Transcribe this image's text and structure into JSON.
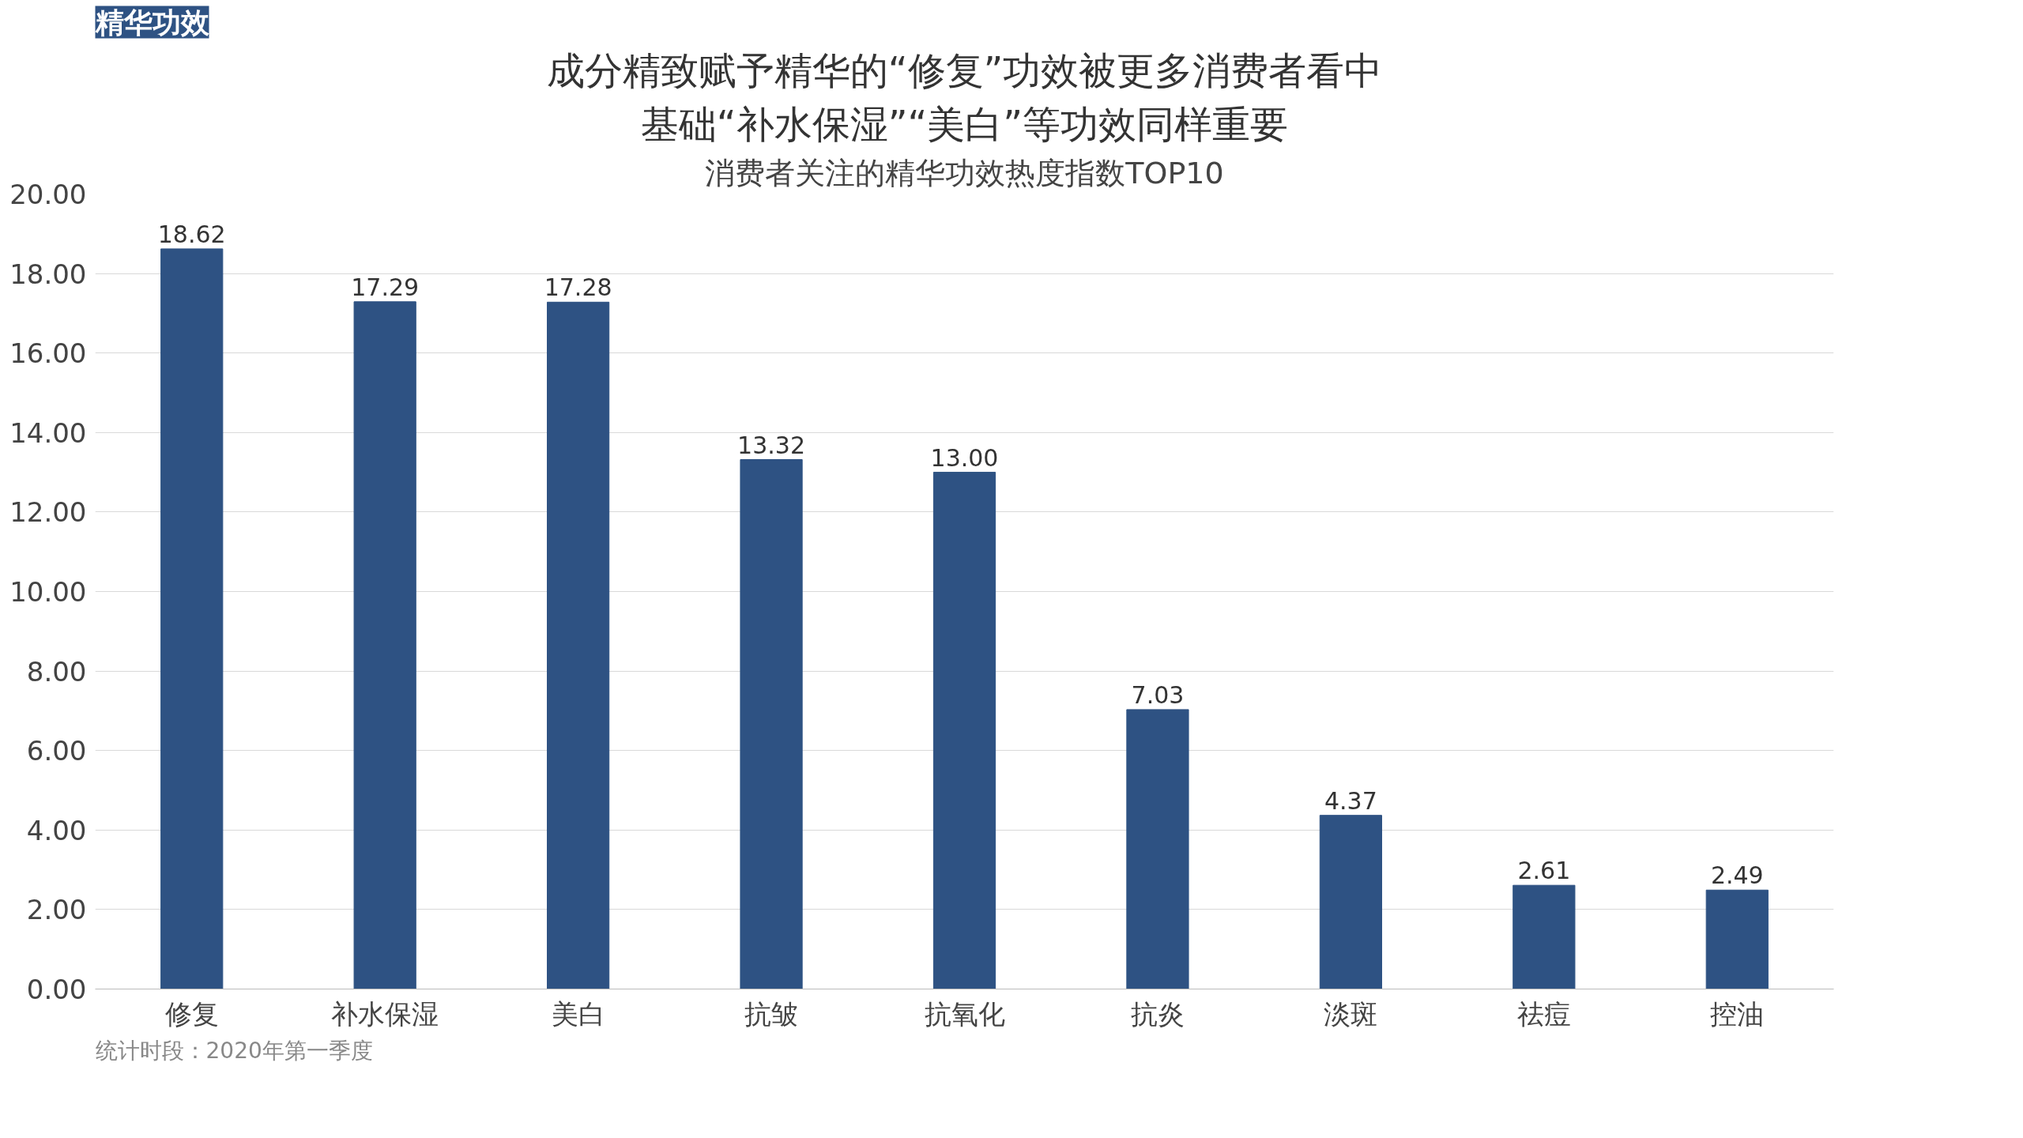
{
  "chart_data": {
    "type": "bar",
    "title": "成分精致赋予精华的“修复”功效被更多消费者看中",
    "subtitle": "基础“补水保湿”“美白”等功效同样重要",
    "categories": [
      "修复",
      "补水保湿",
      "美白",
      "抗皱",
      "抗氧化",
      "抗炎",
      "淡斑",
      "祛痘",
      "控油"
    ],
    "values": [
      18.62,
      17.29,
      17.28,
      13.32,
      13.0,
      7.03,
      4.37,
      2.61,
      2.49
    ],
    "value_labels": [
      "18.62",
      "17.29",
      "17.28",
      "13.32",
      "13.00",
      "7.03",
      "4.37",
      "2.61",
      "2.49"
    ],
    "color": "#2e5283",
    "ylim": [
      0,
      20
    ],
    "yticks": [
      {
        "value": 0,
        "label": "0.00"
      },
      {
        "value": 2,
        "label": "2.00"
      },
      {
        "value": 4,
        "label": "4.00"
      },
      {
        "value": 6,
        "label": "6.00"
      },
      {
        "value": 8,
        "label": "8.00"
      },
      {
        "value": 10,
        "label": "10.00"
      },
      {
        "value": 12,
        "label": "12.00"
      },
      {
        "value": 14,
        "label": "14.00"
      },
      {
        "value": 16,
        "label": "16.00"
      },
      {
        "value": 18,
        "label": "18.00"
      },
      {
        "value": 20,
        "label": "20.00"
      }
    ],
    "grid": "y",
    "annotations": [
      "精华功效",
      "消费者关注的精华功效热度指数TOP10",
      "统计时段：2020年第一季度"
    ]
  }
}
